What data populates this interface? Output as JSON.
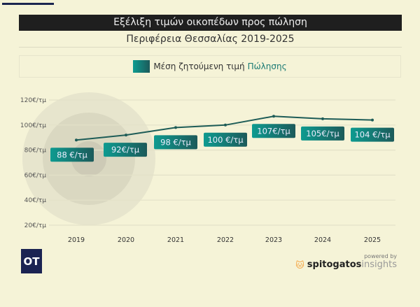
{
  "title": "Εξέλιξη τιμών οικοπέδων προς πώληση",
  "subtitle": "Περιφέρεια Θεσσαλίας 2019-2025",
  "legend": {
    "prefix": "Μέση ζητούμενη τιμή",
    "accent": "Πώλησης"
  },
  "logo": "OT",
  "footer": {
    "powered": "powered by",
    "brand": "spitogatos",
    "brand_suffix": "insights"
  },
  "colors": {
    "line": "#1d5c57",
    "label_start": "#0e9b90",
    "label_end": "#1c5a5a",
    "accent": "#1a7a74",
    "background": "#f5f3d7"
  },
  "chart_data": {
    "type": "line",
    "categories": [
      "2019",
      "2020",
      "2021",
      "2022",
      "2023",
      "2024",
      "2025"
    ],
    "series": [
      {
        "name": "Μέση ζητούμενη τιμή Πώλησης",
        "values": [
          88,
          92,
          98,
          100,
          107,
          105,
          104
        ]
      }
    ],
    "data_labels": [
      "88 €/τμ",
      "92€/τμ",
      "98 €/τμ",
      "100 €/τμ",
      "107€/τμ",
      "105€/τμ",
      "104 €/τμ"
    ],
    "yticks": [
      20,
      40,
      60,
      80,
      100,
      120
    ],
    "ytick_labels": [
      "20€/τμ",
      "40€/τμ",
      "60€/τμ",
      "80€/τμ",
      "100€/τμ",
      "120€/τμ"
    ],
    "ylim": [
      20,
      120
    ],
    "grid": true,
    "legend_position": "top"
  }
}
